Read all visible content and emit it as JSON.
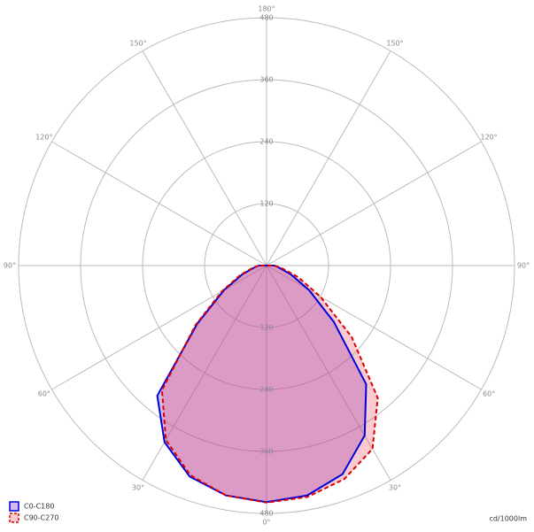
{
  "chart_data": {
    "type": "polar",
    "unit": "cd/1000lm",
    "angles": [
      -90,
      -80,
      -70,
      -60,
      -50,
      -40,
      -30,
      -20,
      -10,
      0,
      10,
      20,
      30,
      40,
      50,
      60,
      70,
      80,
      90
    ],
    "series": [
      {
        "name": "C0-C180",
        "color": "#0000dd",
        "dash": false,
        "values": [
          15,
          25,
          50,
          95,
          175,
          329,
          395,
          435,
          452,
          458,
          452,
          430,
          380,
          300,
          170,
          95,
          50,
          25,
          15
        ]
      },
      {
        "name": "C90-C270",
        "color": "#dd0000",
        "dash": true,
        "values": [
          15,
          28,
          55,
          100,
          180,
          315,
          390,
          432,
          452,
          459,
          455,
          440,
          410,
          335,
          215,
          120,
          65,
          30,
          15
        ]
      }
    ],
    "rlim": [
      0,
      480
    ],
    "rticks": [
      120,
      240,
      360,
      480
    ],
    "angle_ticks": [
      {
        "value": 0,
        "label": "0°"
      },
      {
        "value": 30,
        "label": "30°"
      },
      {
        "value": 60,
        "label": "60°"
      },
      {
        "value": 90,
        "label": "90°"
      },
      {
        "value": 120,
        "label": "120°"
      },
      {
        "value": 150,
        "label": "150°"
      },
      {
        "value": 180,
        "label": "180°"
      }
    ]
  }
}
